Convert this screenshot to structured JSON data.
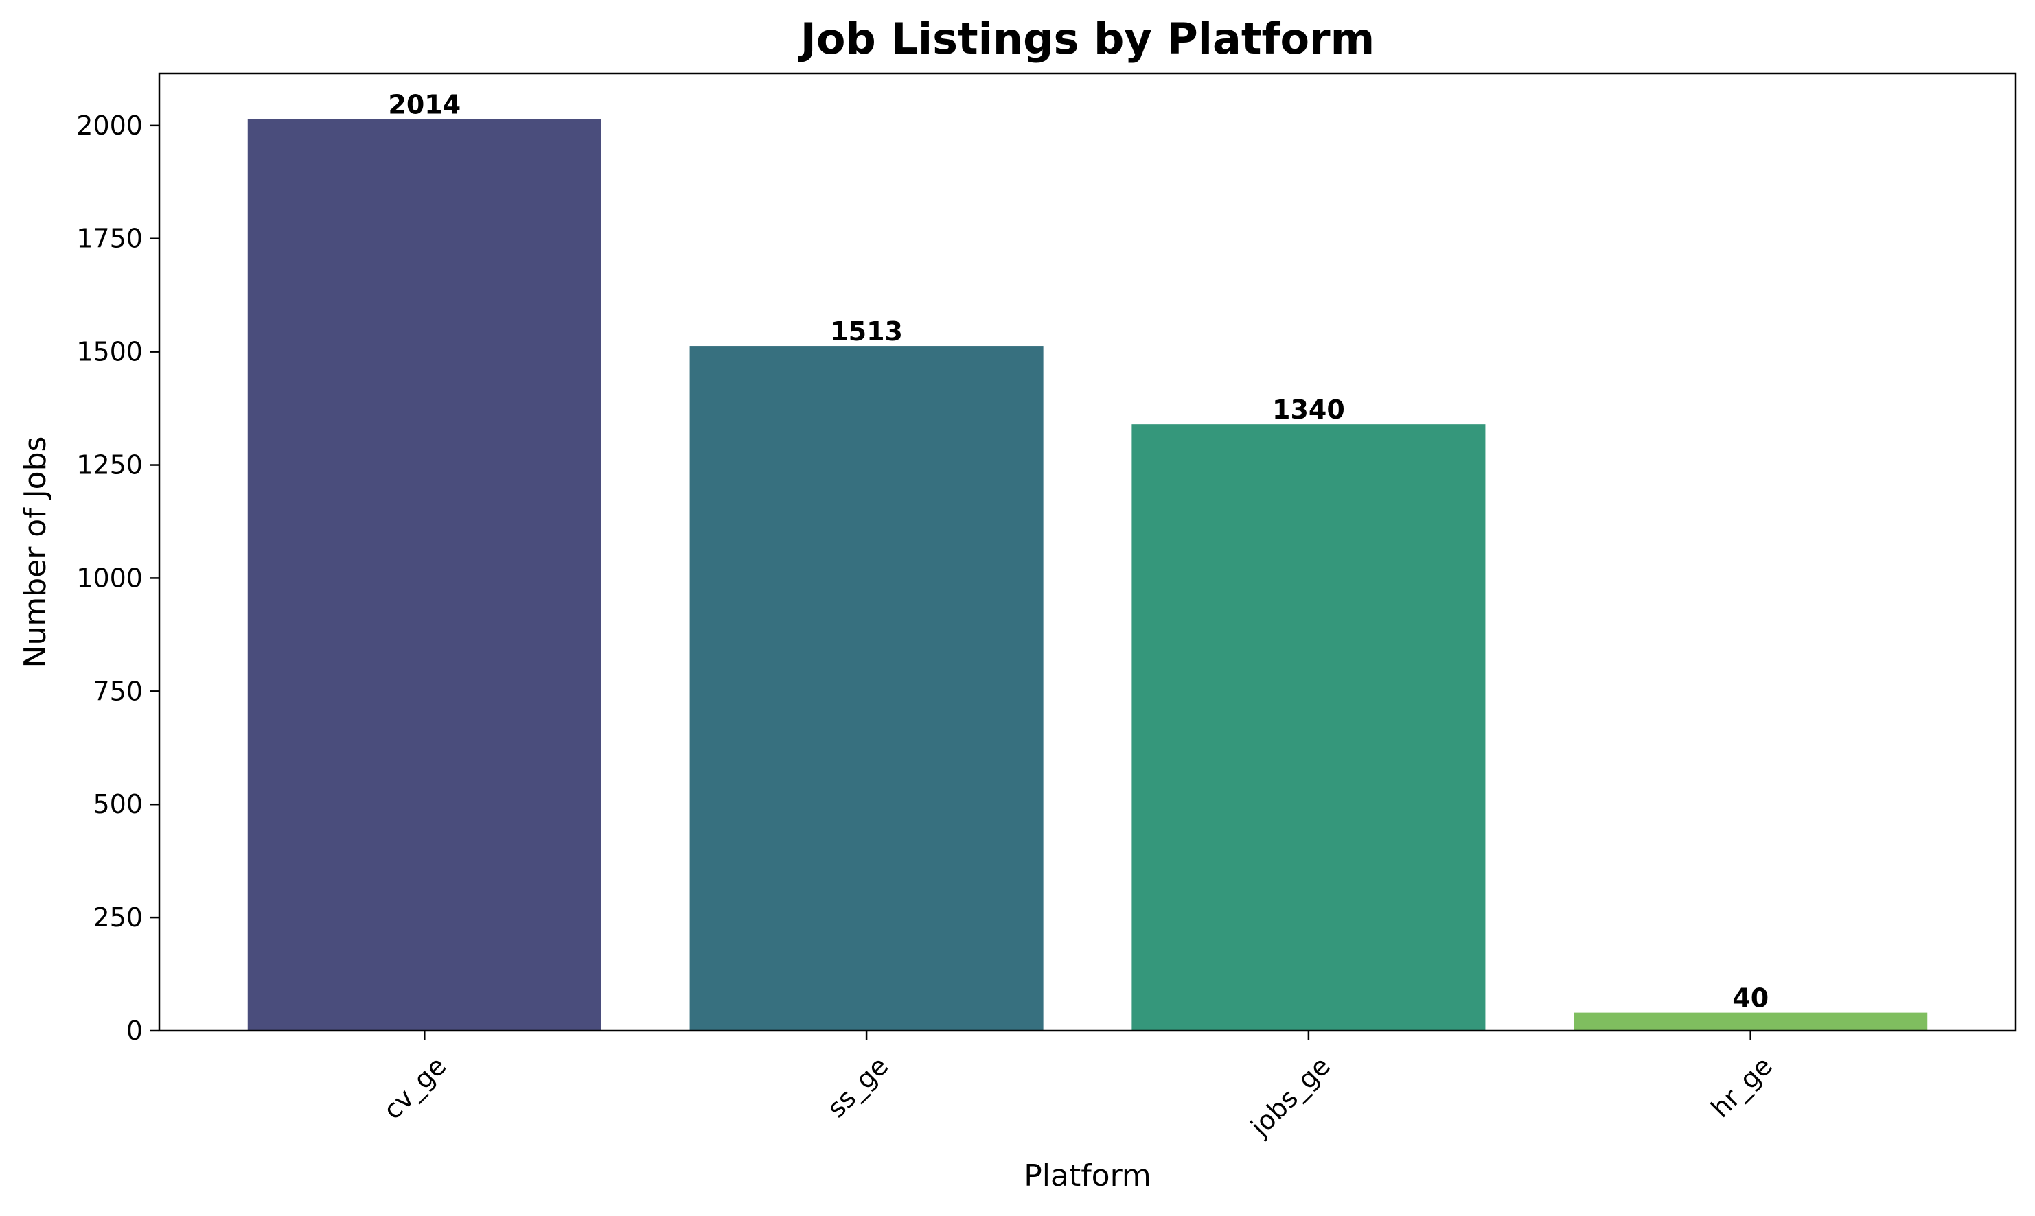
{
  "chart_data": {
    "type": "bar",
    "title": "Job Listings by Platform",
    "xlabel": "Platform",
    "ylabel": "Number of Jobs",
    "categories": [
      "cv_ge",
      "ss_ge",
      "jobs_ge",
      "hr_ge"
    ],
    "values": [
      2014,
      1513,
      1340,
      40
    ],
    "data_labels": [
      "2014",
      "1513",
      "1340",
      "40"
    ],
    "colors": [
      "#4a4d7c",
      "#37707f",
      "#35977b",
      "#7fbe5f"
    ],
    "ylim": [
      0,
      2115
    ],
    "yticks": [
      0,
      250,
      500,
      750,
      1000,
      1250,
      1500,
      1750,
      2000
    ],
    "ytick_labels": [
      "0",
      "250",
      "500",
      "750",
      "1000",
      "1250",
      "1500",
      "1750",
      "2000"
    ],
    "xtick_rotation": "45 degrees",
    "grid": false,
    "legend": false
  }
}
